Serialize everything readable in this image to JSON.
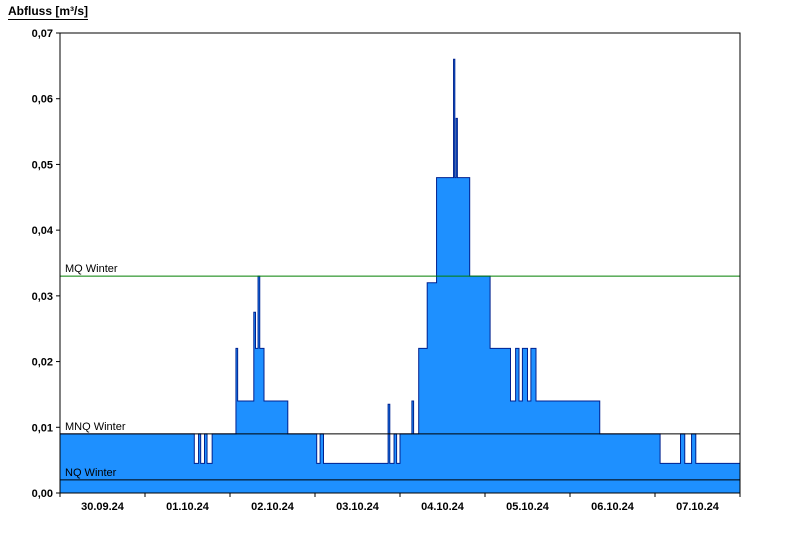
{
  "title": "Abfluss [m³/s]",
  "chart_data": {
    "type": "area",
    "step": true,
    "title": "Abfluss [m³/s]",
    "ylabel": "Abfluss [m³/s]",
    "xlabel": "",
    "ylim": [
      0,
      0.07
    ],
    "x_domain_days": 8,
    "x_labels": [
      "30.09.24",
      "01.10.24",
      "02.10.24",
      "03.10.24",
      "04.10.24",
      "05.10.24",
      "06.10.24",
      "07.10.24"
    ],
    "y_tick_labels": [
      "0,00",
      "0,01",
      "0,02",
      "0,03",
      "0,04",
      "0,05",
      "0,06",
      "0,07"
    ],
    "y_tick_values": [
      0,
      0.01,
      0.02,
      0.03,
      0.04,
      0.05,
      0.06,
      0.07
    ],
    "grid": false,
    "legend": "none",
    "series": {
      "name": "Abfluss",
      "fill_color": "#1E90FF",
      "stroke_color": "#00218F",
      "t_end": 8.0,
      "points": [
        [
          0.0,
          0.009
        ],
        [
          1.58,
          0.0045
        ],
        [
          1.63,
          0.009
        ],
        [
          1.655,
          0.0045
        ],
        [
          1.7,
          0.009
        ],
        [
          1.73,
          0.0045
        ],
        [
          1.79,
          0.009
        ],
        [
          2.07,
          0.022
        ],
        [
          2.09,
          0.014
        ],
        [
          2.28,
          0.0275
        ],
        [
          2.3,
          0.022
        ],
        [
          2.33,
          0.033
        ],
        [
          2.35,
          0.022
        ],
        [
          2.4,
          0.014
        ],
        [
          2.68,
          0.009
        ],
        [
          3.02,
          0.0045
        ],
        [
          3.06,
          0.009
        ],
        [
          3.1,
          0.0045
        ],
        [
          3.86,
          0.0135
        ],
        [
          3.88,
          0.0045
        ],
        [
          3.93,
          0.009
        ],
        [
          3.96,
          0.0045
        ],
        [
          4.0,
          0.009
        ],
        [
          4.14,
          0.014
        ],
        [
          4.16,
          0.009
        ],
        [
          4.22,
          0.022
        ],
        [
          4.32,
          0.032
        ],
        [
          4.43,
          0.048
        ],
        [
          4.63,
          0.066
        ],
        [
          4.645,
          0.048
        ],
        [
          4.66,
          0.057
        ],
        [
          4.675,
          0.048
        ],
        [
          4.82,
          0.033
        ],
        [
          5.06,
          0.022
        ],
        [
          5.3,
          0.014
        ],
        [
          5.36,
          0.022
        ],
        [
          5.4,
          0.014
        ],
        [
          5.44,
          0.022
        ],
        [
          5.5,
          0.014
        ],
        [
          5.54,
          0.022
        ],
        [
          5.6,
          0.014
        ],
        [
          6.35,
          0.009
        ],
        [
          7.06,
          0.0045
        ],
        [
          7.3,
          0.009
        ],
        [
          7.35,
          0.0045
        ],
        [
          7.43,
          0.009
        ],
        [
          7.48,
          0.0045
        ]
      ]
    },
    "thresholds": [
      {
        "label": "MQ Winter",
        "value": 0.033,
        "color": "#007F00"
      },
      {
        "label": "MNQ Winter",
        "value": 0.009,
        "color": "#000000"
      },
      {
        "label": "NQ Winter",
        "value": 0.002,
        "color": "#000000"
      }
    ]
  }
}
